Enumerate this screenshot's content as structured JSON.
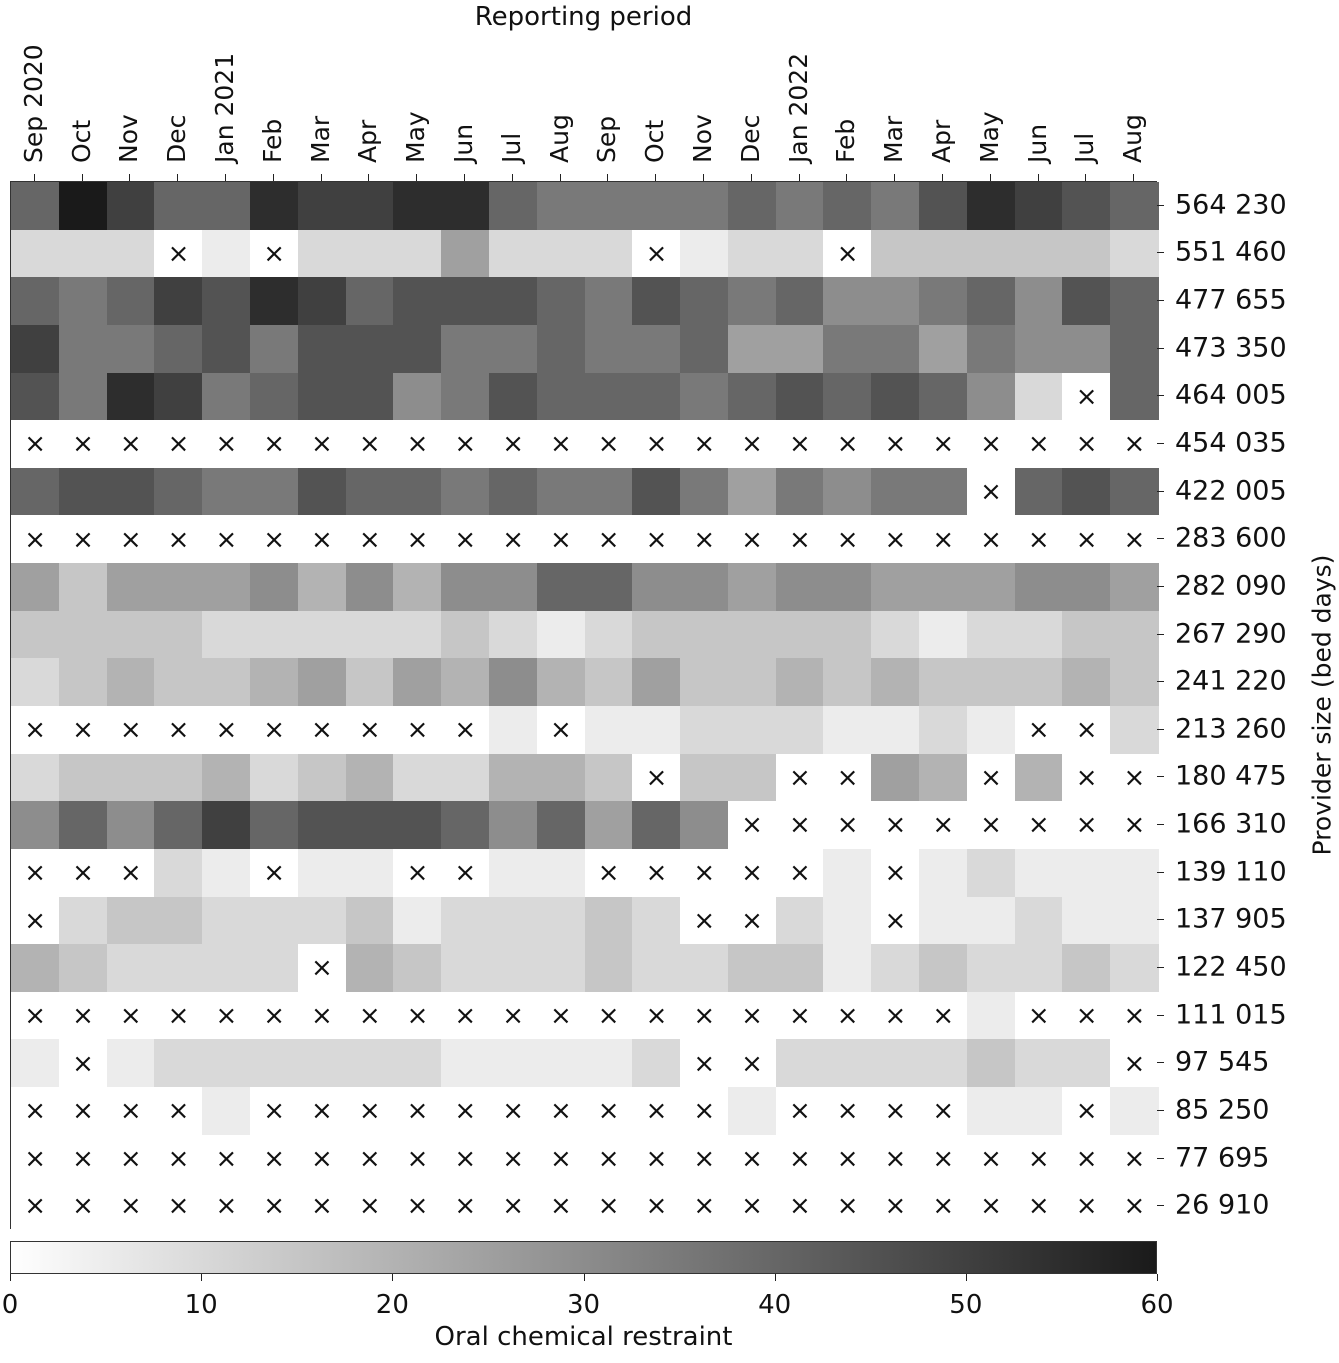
{
  "chart_data": {
    "type": "heatmap",
    "title": "",
    "xlabel": "Reporting period",
    "ylabel": "Provider size (bed days)",
    "colorbar_label": "Oral chemical restraint",
    "colorbar_ticks": [
      "0",
      "10",
      "20",
      "30",
      "40",
      "50",
      "60"
    ],
    "colorbar_range": [
      0,
      60
    ],
    "colormap": "greys (0 = white, 60 = near black)",
    "missing_marker": "×",
    "x_labels": [
      "Sep 2020",
      "Oct",
      "Nov",
      "Dec",
      "Jan 2021",
      "Feb",
      "Mar",
      "Apr",
      "May",
      "Jun",
      "Jul",
      "Aug",
      "Sep",
      "Oct",
      "Nov",
      "Dec",
      "Jan 2022",
      "Feb",
      "Mar",
      "Apr",
      "May",
      "Jun",
      "Jul",
      "Aug"
    ],
    "y_labels": [
      "564 230",
      "551 460",
      "477 655",
      "473 350",
      "464 005",
      "454 035",
      "422 005",
      "283 600",
      "282 090",
      "267 290",
      "241 220",
      "213 260",
      "180 475",
      "166 310",
      "139 110",
      "137 905",
      "122 450",
      "111 015",
      "97 545",
      "85 250",
      "77 695",
      "26 910"
    ],
    "values": [
      [
        40,
        60,
        50,
        40,
        40,
        55,
        50,
        50,
        55,
        55,
        40,
        35,
        35,
        35,
        35,
        40,
        35,
        40,
        35,
        45,
        55,
        50,
        45,
        40
      ],
      [
        10,
        10,
        10,
        null,
        5,
        null,
        10,
        10,
        10,
        25,
        10,
        10,
        10,
        null,
        5,
        10,
        10,
        null,
        15,
        15,
        15,
        15,
        15,
        10
      ],
      [
        40,
        35,
        40,
        50,
        45,
        55,
        50,
        40,
        45,
        45,
        45,
        40,
        35,
        45,
        40,
        35,
        40,
        30,
        30,
        35,
        40,
        30,
        45,
        40
      ],
      [
        50,
        35,
        35,
        40,
        45,
        35,
        45,
        45,
        45,
        35,
        35,
        40,
        35,
        35,
        40,
        25,
        25,
        35,
        35,
        25,
        35,
        30,
        30,
        40
      ],
      [
        45,
        35,
        55,
        50,
        35,
        40,
        45,
        45,
        30,
        35,
        45,
        40,
        40,
        40,
        35,
        40,
        45,
        40,
        45,
        40,
        30,
        10,
        null,
        40
      ],
      [
        null,
        null,
        null,
        null,
        null,
        null,
        null,
        null,
        null,
        null,
        null,
        null,
        null,
        null,
        null,
        null,
        null,
        null,
        null,
        null,
        null,
        null,
        null,
        null
      ],
      [
        40,
        45,
        45,
        40,
        35,
        35,
        45,
        40,
        40,
        35,
        40,
        35,
        35,
        45,
        35,
        25,
        35,
        30,
        35,
        35,
        null,
        40,
        45,
        40
      ],
      [
        null,
        null,
        null,
        null,
        null,
        null,
        null,
        null,
        null,
        null,
        null,
        null,
        null,
        null,
        null,
        null,
        null,
        null,
        null,
        null,
        null,
        null,
        null,
        null
      ],
      [
        25,
        15,
        25,
        25,
        25,
        30,
        20,
        30,
        20,
        30,
        30,
        40,
        40,
        30,
        30,
        25,
        30,
        30,
        25,
        25,
        25,
        30,
        30,
        25
      ],
      [
        15,
        15,
        15,
        15,
        10,
        10,
        10,
        10,
        10,
        15,
        10,
        5,
        10,
        15,
        15,
        15,
        15,
        15,
        10,
        5,
        10,
        10,
        15,
        15
      ],
      [
        10,
        15,
        20,
        15,
        15,
        20,
        25,
        15,
        25,
        20,
        30,
        20,
        15,
        25,
        15,
        15,
        20,
        15,
        20,
        15,
        15,
        15,
        20,
        15
      ],
      [
        null,
        null,
        null,
        null,
        null,
        null,
        null,
        null,
        null,
        null,
        5,
        null,
        5,
        5,
        10,
        10,
        10,
        5,
        5,
        10,
        5,
        null,
        null,
        10
      ],
      [
        10,
        15,
        15,
        15,
        20,
        10,
        15,
        20,
        10,
        10,
        20,
        20,
        15,
        null,
        15,
        15,
        null,
        null,
        25,
        20,
        null,
        20,
        null,
        null
      ],
      [
        30,
        40,
        30,
        40,
        50,
        40,
        45,
        45,
        45,
        40,
        30,
        40,
        25,
        40,
        30,
        null,
        null,
        null,
        null,
        null,
        null,
        null,
        null,
        null
      ],
      [
        null,
        null,
        null,
        10,
        5,
        null,
        5,
        5,
        null,
        null,
        5,
        5,
        null,
        null,
        null,
        null,
        null,
        5,
        null,
        5,
        10,
        5,
        5,
        5
      ],
      [
        null,
        10,
        15,
        15,
        10,
        10,
        10,
        15,
        5,
        10,
        10,
        10,
        15,
        10,
        null,
        null,
        10,
        5,
        null,
        5,
        5,
        10,
        5,
        5
      ],
      [
        20,
        15,
        10,
        10,
        10,
        10,
        null,
        20,
        15,
        10,
        10,
        10,
        15,
        10,
        10,
        15,
        15,
        5,
        10,
        15,
        10,
        10,
        15,
        10
      ],
      [
        null,
        null,
        null,
        null,
        null,
        null,
        null,
        null,
        null,
        null,
        null,
        null,
        null,
        null,
        null,
        null,
        null,
        null,
        null,
        null,
        5,
        null,
        null,
        null
      ],
      [
        5,
        null,
        5,
        10,
        10,
        10,
        10,
        10,
        10,
        5,
        5,
        5,
        5,
        10,
        null,
        null,
        10,
        10,
        10,
        10,
        15,
        10,
        10,
        null
      ],
      [
        null,
        null,
        null,
        null,
        5,
        null,
        null,
        null,
        null,
        null,
        null,
        null,
        null,
        null,
        null,
        5,
        null,
        null,
        null,
        null,
        5,
        5,
        null,
        5
      ],
      [
        null,
        null,
        null,
        null,
        null,
        null,
        null,
        null,
        null,
        null,
        null,
        null,
        null,
        null,
        null,
        null,
        null,
        null,
        null,
        null,
        null,
        null,
        null,
        null
      ],
      [
        null,
        null,
        null,
        null,
        null,
        null,
        null,
        null,
        null,
        null,
        null,
        null,
        null,
        null,
        null,
        null,
        null,
        null,
        null,
        null,
        null,
        null,
        null,
        null
      ]
    ],
    "grid": false,
    "legend_position": "bottom (horizontal colorbar)"
  }
}
